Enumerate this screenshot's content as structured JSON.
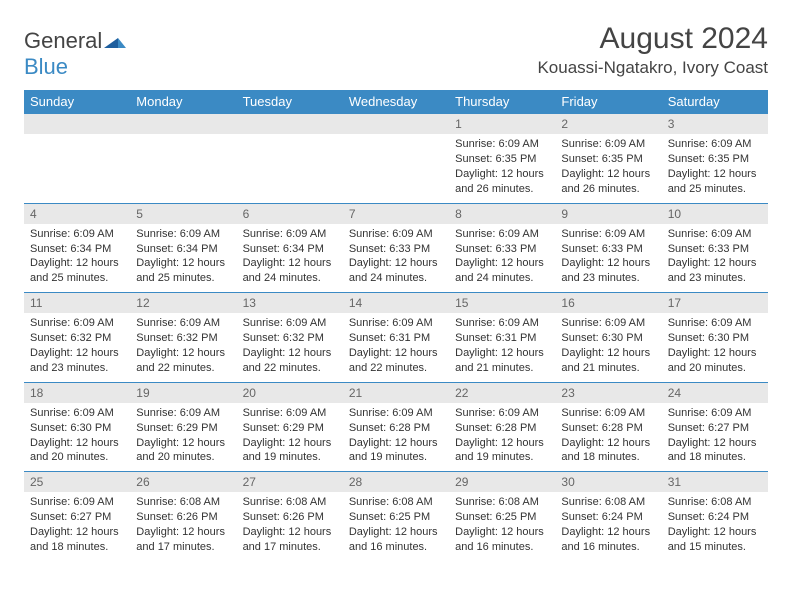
{
  "logo": {
    "part1": "General",
    "part2": "Blue"
  },
  "title": "August 2024",
  "location": "Kouassi-Ngatakro, Ivory Coast",
  "colors": {
    "brand_blue": "#3b8ac4",
    "header_text": "#444444",
    "daynum_bg": "#e8e8e8",
    "daynum_text": "#666666",
    "body_text": "#333333",
    "white": "#ffffff"
  },
  "calendar": {
    "type": "table",
    "day_headers": [
      "Sunday",
      "Monday",
      "Tuesday",
      "Wednesday",
      "Thursday",
      "Friday",
      "Saturday"
    ],
    "cell_fontsize": 11,
    "header_fontsize": 13,
    "weeks": [
      [
        {
          "n": null
        },
        {
          "n": null
        },
        {
          "n": null
        },
        {
          "n": null
        },
        {
          "n": 1,
          "sunrise": "6:09 AM",
          "sunset": "6:35 PM",
          "daylight": "12 hours and 26 minutes."
        },
        {
          "n": 2,
          "sunrise": "6:09 AM",
          "sunset": "6:35 PM",
          "daylight": "12 hours and 26 minutes."
        },
        {
          "n": 3,
          "sunrise": "6:09 AM",
          "sunset": "6:35 PM",
          "daylight": "12 hours and 25 minutes."
        }
      ],
      [
        {
          "n": 4,
          "sunrise": "6:09 AM",
          "sunset": "6:34 PM",
          "daylight": "12 hours and 25 minutes."
        },
        {
          "n": 5,
          "sunrise": "6:09 AM",
          "sunset": "6:34 PM",
          "daylight": "12 hours and 25 minutes."
        },
        {
          "n": 6,
          "sunrise": "6:09 AM",
          "sunset": "6:34 PM",
          "daylight": "12 hours and 24 minutes."
        },
        {
          "n": 7,
          "sunrise": "6:09 AM",
          "sunset": "6:33 PM",
          "daylight": "12 hours and 24 minutes."
        },
        {
          "n": 8,
          "sunrise": "6:09 AM",
          "sunset": "6:33 PM",
          "daylight": "12 hours and 24 minutes."
        },
        {
          "n": 9,
          "sunrise": "6:09 AM",
          "sunset": "6:33 PM",
          "daylight": "12 hours and 23 minutes."
        },
        {
          "n": 10,
          "sunrise": "6:09 AM",
          "sunset": "6:33 PM",
          "daylight": "12 hours and 23 minutes."
        }
      ],
      [
        {
          "n": 11,
          "sunrise": "6:09 AM",
          "sunset": "6:32 PM",
          "daylight": "12 hours and 23 minutes."
        },
        {
          "n": 12,
          "sunrise": "6:09 AM",
          "sunset": "6:32 PM",
          "daylight": "12 hours and 22 minutes."
        },
        {
          "n": 13,
          "sunrise": "6:09 AM",
          "sunset": "6:32 PM",
          "daylight": "12 hours and 22 minutes."
        },
        {
          "n": 14,
          "sunrise": "6:09 AM",
          "sunset": "6:31 PM",
          "daylight": "12 hours and 22 minutes."
        },
        {
          "n": 15,
          "sunrise": "6:09 AM",
          "sunset": "6:31 PM",
          "daylight": "12 hours and 21 minutes."
        },
        {
          "n": 16,
          "sunrise": "6:09 AM",
          "sunset": "6:30 PM",
          "daylight": "12 hours and 21 minutes."
        },
        {
          "n": 17,
          "sunrise": "6:09 AM",
          "sunset": "6:30 PM",
          "daylight": "12 hours and 20 minutes."
        }
      ],
      [
        {
          "n": 18,
          "sunrise": "6:09 AM",
          "sunset": "6:30 PM",
          "daylight": "12 hours and 20 minutes."
        },
        {
          "n": 19,
          "sunrise": "6:09 AM",
          "sunset": "6:29 PM",
          "daylight": "12 hours and 20 minutes."
        },
        {
          "n": 20,
          "sunrise": "6:09 AM",
          "sunset": "6:29 PM",
          "daylight": "12 hours and 19 minutes."
        },
        {
          "n": 21,
          "sunrise": "6:09 AM",
          "sunset": "6:28 PM",
          "daylight": "12 hours and 19 minutes."
        },
        {
          "n": 22,
          "sunrise": "6:09 AM",
          "sunset": "6:28 PM",
          "daylight": "12 hours and 19 minutes."
        },
        {
          "n": 23,
          "sunrise": "6:09 AM",
          "sunset": "6:28 PM",
          "daylight": "12 hours and 18 minutes."
        },
        {
          "n": 24,
          "sunrise": "6:09 AM",
          "sunset": "6:27 PM",
          "daylight": "12 hours and 18 minutes."
        }
      ],
      [
        {
          "n": 25,
          "sunrise": "6:09 AM",
          "sunset": "6:27 PM",
          "daylight": "12 hours and 18 minutes."
        },
        {
          "n": 26,
          "sunrise": "6:08 AM",
          "sunset": "6:26 PM",
          "daylight": "12 hours and 17 minutes."
        },
        {
          "n": 27,
          "sunrise": "6:08 AM",
          "sunset": "6:26 PM",
          "daylight": "12 hours and 17 minutes."
        },
        {
          "n": 28,
          "sunrise": "6:08 AM",
          "sunset": "6:25 PM",
          "daylight": "12 hours and 16 minutes."
        },
        {
          "n": 29,
          "sunrise": "6:08 AM",
          "sunset": "6:25 PM",
          "daylight": "12 hours and 16 minutes."
        },
        {
          "n": 30,
          "sunrise": "6:08 AM",
          "sunset": "6:24 PM",
          "daylight": "12 hours and 16 minutes."
        },
        {
          "n": 31,
          "sunrise": "6:08 AM",
          "sunset": "6:24 PM",
          "daylight": "12 hours and 15 minutes."
        }
      ]
    ]
  }
}
